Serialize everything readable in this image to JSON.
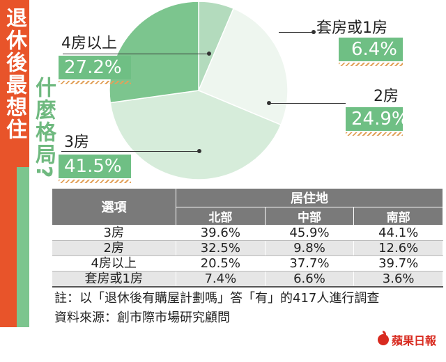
{
  "title": {
    "main": "退休後最想住",
    "sub": "什麼格局?"
  },
  "colors": {
    "accent_orange": "#e8542a",
    "accent_green": "#6fbf84",
    "table_header": "#7a7a7a",
    "brand_red": "#d82a1f"
  },
  "chart_data": {
    "type": "pie",
    "slices": [
      {
        "label": "套房或1房",
        "value": 6.4,
        "display": "6.4%",
        "color": "#b3dbbd"
      },
      {
        "label": "2房",
        "value": 24.9,
        "display": "24.9%",
        "color": "#eef6ef"
      },
      {
        "label": "3房",
        "value": 41.5,
        "display": "41.5%",
        "color": "#d6ecda"
      },
      {
        "label": "4房以上",
        "value": 27.2,
        "display": "27.2%",
        "color": "#7cc58e"
      }
    ],
    "start_angle_deg": 0,
    "direction": "clockwise"
  },
  "table": {
    "header_option": "選項",
    "header_group": "居住地",
    "columns": [
      "北部",
      "中部",
      "南部"
    ],
    "rows": [
      {
        "option": "3房",
        "values": [
          "39.6%",
          "45.9%",
          "44.1%"
        ]
      },
      {
        "option": "2房",
        "values": [
          "32.5%",
          "9.8%",
          "12.6%"
        ]
      },
      {
        "option": "4房以上",
        "values": [
          "20.5%",
          "37.7%",
          "39.7%"
        ]
      },
      {
        "option": "套房或1房",
        "values": [
          "7.4%",
          "6.6%",
          "3.6%"
        ]
      }
    ]
  },
  "notes": {
    "note": "註：以「退休後有購屋計劃嗎」答「有」的417人進行調查",
    "source": "資料來源：創市際市場研究顧問"
  },
  "brand": {
    "name": "蘋果日報",
    "icon": "apple-icon"
  }
}
